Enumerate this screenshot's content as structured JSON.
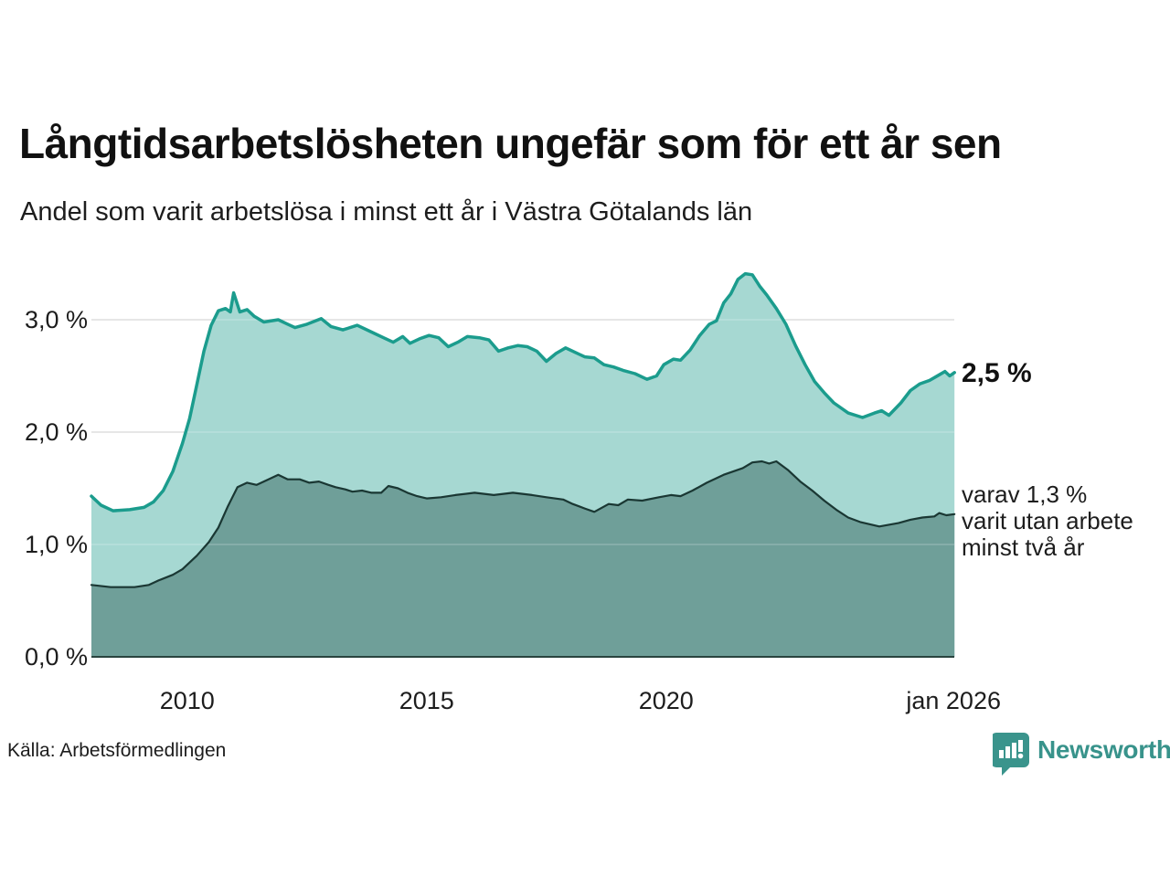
{
  "header": {
    "title": "Långtidsarbetslösheten ungefär som för ett år sen",
    "subtitle": "Andel som varit arbetslösa i minst ett år i Västra Götalands län"
  },
  "annotations": {
    "latest_value": "2,5 %",
    "secondary_line1": "varav 1,3 %",
    "secondary_line2": "varit utan arbete",
    "secondary_line3": "minst två år"
  },
  "footer": {
    "source": "Källa: Arbetsförmedlingen",
    "brand": "Newsworthy"
  },
  "colors": {
    "series1_line": "#1b9c8d",
    "series1_fill": "#a6d8d2",
    "series2_line": "#1a3733",
    "series2_fill": "#6f9f99",
    "gridline": "#d8d8d8",
    "baseline": "#29443f",
    "brand_teal": "#3a948c"
  },
  "chart_data": {
    "type": "area",
    "title": "Långtidsarbetslösheten ungefär som för ett år sen",
    "subtitle": "Andel som varit arbetslösa i minst ett år i Västra Götalands län",
    "xlabel": "",
    "ylabel": "",
    "grid": true,
    "x_axis": {
      "range": [
        2008,
        2026.1
      ],
      "ticks": [
        {
          "label": "2010",
          "year": 2010
        },
        {
          "label": "2015",
          "year": 2015
        },
        {
          "label": "2020",
          "year": 2020
        },
        {
          "label": "jan 2026",
          "year": 2026
        }
      ]
    },
    "y_axis": {
      "unit": "%",
      "range": [
        0,
        3.6
      ],
      "ticks": [
        {
          "label": "3,0 %",
          "value": 3.0
        },
        {
          "label": "2,0 %",
          "value": 2.0
        },
        {
          "label": "1,0 %",
          "value": 1.0
        },
        {
          "label": "0,0 %",
          "value": 0.0
        }
      ]
    },
    "series": [
      {
        "name": "Andel arbetslösa minst ett år",
        "latest_label": "2,5 %",
        "line_color": "#1b9c8d",
        "fill_color": "#a6d8d2",
        "line_width": 3.5,
        "points": [
          [
            2008.0,
            1.43
          ],
          [
            2008.2,
            1.35
          ],
          [
            2008.45,
            1.3
          ],
          [
            2008.8,
            1.31
          ],
          [
            2009.1,
            1.33
          ],
          [
            2009.3,
            1.38
          ],
          [
            2009.5,
            1.48
          ],
          [
            2009.7,
            1.65
          ],
          [
            2009.9,
            1.9
          ],
          [
            2010.05,
            2.12
          ],
          [
            2010.2,
            2.42
          ],
          [
            2010.35,
            2.72
          ],
          [
            2010.5,
            2.95
          ],
          [
            2010.65,
            3.08
          ],
          [
            2010.8,
            3.1
          ],
          [
            2010.9,
            3.07
          ],
          [
            2010.97,
            3.24
          ],
          [
            2011.1,
            3.07
          ],
          [
            2011.25,
            3.09
          ],
          [
            2011.4,
            3.03
          ],
          [
            2011.6,
            2.98
          ],
          [
            2011.9,
            3.0
          ],
          [
            2012.1,
            2.96
          ],
          [
            2012.25,
            2.93
          ],
          [
            2012.5,
            2.96
          ],
          [
            2012.8,
            3.01
          ],
          [
            2013.0,
            2.94
          ],
          [
            2013.25,
            2.91
          ],
          [
            2013.55,
            2.95
          ],
          [
            2013.85,
            2.89
          ],
          [
            2014.1,
            2.84
          ],
          [
            2014.3,
            2.8
          ],
          [
            2014.5,
            2.85
          ],
          [
            2014.65,
            2.79
          ],
          [
            2014.85,
            2.83
          ],
          [
            2015.05,
            2.86
          ],
          [
            2015.25,
            2.84
          ],
          [
            2015.45,
            2.76
          ],
          [
            2015.65,
            2.8
          ],
          [
            2015.85,
            2.85
          ],
          [
            2016.1,
            2.84
          ],
          [
            2016.3,
            2.82
          ],
          [
            2016.5,
            2.72
          ],
          [
            2016.7,
            2.75
          ],
          [
            2016.9,
            2.77
          ],
          [
            2017.1,
            2.76
          ],
          [
            2017.3,
            2.72
          ],
          [
            2017.5,
            2.63
          ],
          [
            2017.7,
            2.7
          ],
          [
            2017.9,
            2.75
          ],
          [
            2018.1,
            2.71
          ],
          [
            2018.3,
            2.67
          ],
          [
            2018.5,
            2.66
          ],
          [
            2018.7,
            2.6
          ],
          [
            2018.9,
            2.58
          ],
          [
            2019.1,
            2.55
          ],
          [
            2019.35,
            2.52
          ],
          [
            2019.6,
            2.47
          ],
          [
            2019.8,
            2.5
          ],
          [
            2019.95,
            2.6
          ],
          [
            2020.15,
            2.65
          ],
          [
            2020.3,
            2.64
          ],
          [
            2020.5,
            2.73
          ],
          [
            2020.7,
            2.86
          ],
          [
            2020.9,
            2.96
          ],
          [
            2021.05,
            2.99
          ],
          [
            2021.2,
            3.15
          ],
          [
            2021.35,
            3.23
          ],
          [
            2021.5,
            3.36
          ],
          [
            2021.65,
            3.41
          ],
          [
            2021.8,
            3.4
          ],
          [
            2021.95,
            3.3
          ],
          [
            2022.1,
            3.22
          ],
          [
            2022.3,
            3.1
          ],
          [
            2022.5,
            2.96
          ],
          [
            2022.7,
            2.77
          ],
          [
            2022.9,
            2.6
          ],
          [
            2023.1,
            2.45
          ],
          [
            2023.3,
            2.35
          ],
          [
            2023.5,
            2.26
          ],
          [
            2023.8,
            2.17
          ],
          [
            2024.1,
            2.13
          ],
          [
            2024.35,
            2.17
          ],
          [
            2024.5,
            2.19
          ],
          [
            2024.65,
            2.15
          ],
          [
            2024.9,
            2.26
          ],
          [
            2025.1,
            2.37
          ],
          [
            2025.3,
            2.43
          ],
          [
            2025.5,
            2.46
          ],
          [
            2025.7,
            2.51
          ],
          [
            2025.82,
            2.54
          ],
          [
            2025.92,
            2.5
          ],
          [
            2026.02,
            2.53
          ]
        ]
      },
      {
        "name": "varav utan arbete minst två år",
        "latest_label": "1,3 %",
        "line_color": "#1a3733",
        "fill_color": "#6f9f99",
        "line_width": 2.2,
        "points": [
          [
            2008.0,
            0.64
          ],
          [
            2008.4,
            0.62
          ],
          [
            2008.9,
            0.62
          ],
          [
            2009.2,
            0.64
          ],
          [
            2009.4,
            0.68
          ],
          [
            2009.7,
            0.73
          ],
          [
            2009.9,
            0.78
          ],
          [
            2010.2,
            0.9
          ],
          [
            2010.45,
            1.02
          ],
          [
            2010.65,
            1.15
          ],
          [
            2010.85,
            1.34
          ],
          [
            2011.05,
            1.51
          ],
          [
            2011.25,
            1.55
          ],
          [
            2011.45,
            1.53
          ],
          [
            2011.65,
            1.57
          ],
          [
            2011.9,
            1.62
          ],
          [
            2012.1,
            1.58
          ],
          [
            2012.35,
            1.58
          ],
          [
            2012.55,
            1.55
          ],
          [
            2012.75,
            1.56
          ],
          [
            2012.95,
            1.53
          ],
          [
            2013.1,
            1.51
          ],
          [
            2013.3,
            1.49
          ],
          [
            2013.45,
            1.47
          ],
          [
            2013.65,
            1.48
          ],
          [
            2013.85,
            1.46
          ],
          [
            2014.05,
            1.46
          ],
          [
            2014.2,
            1.52
          ],
          [
            2014.4,
            1.5
          ],
          [
            2014.6,
            1.46
          ],
          [
            2014.8,
            1.43
          ],
          [
            2015.0,
            1.41
          ],
          [
            2015.3,
            1.42
          ],
          [
            2015.6,
            1.44
          ],
          [
            2016.0,
            1.46
          ],
          [
            2016.4,
            1.44
          ],
          [
            2016.8,
            1.46
          ],
          [
            2017.2,
            1.44
          ],
          [
            2017.5,
            1.42
          ],
          [
            2017.85,
            1.4
          ],
          [
            2018.05,
            1.36
          ],
          [
            2018.3,
            1.32
          ],
          [
            2018.5,
            1.29
          ],
          [
            2018.8,
            1.36
          ],
          [
            2019.0,
            1.35
          ],
          [
            2019.2,
            1.4
          ],
          [
            2019.5,
            1.39
          ],
          [
            2019.85,
            1.42
          ],
          [
            2020.1,
            1.44
          ],
          [
            2020.3,
            1.43
          ],
          [
            2020.55,
            1.48
          ],
          [
            2020.85,
            1.55
          ],
          [
            2021.2,
            1.62
          ],
          [
            2021.6,
            1.68
          ],
          [
            2021.8,
            1.73
          ],
          [
            2022.0,
            1.74
          ],
          [
            2022.15,
            1.72
          ],
          [
            2022.3,
            1.74
          ],
          [
            2022.55,
            1.66
          ],
          [
            2022.8,
            1.56
          ],
          [
            2023.05,
            1.48
          ],
          [
            2023.3,
            1.39
          ],
          [
            2023.55,
            1.31
          ],
          [
            2023.8,
            1.24
          ],
          [
            2024.05,
            1.2
          ],
          [
            2024.45,
            1.16
          ],
          [
            2024.85,
            1.19
          ],
          [
            2025.1,
            1.22
          ],
          [
            2025.35,
            1.24
          ],
          [
            2025.6,
            1.25
          ],
          [
            2025.7,
            1.28
          ],
          [
            2025.85,
            1.26
          ],
          [
            2026.02,
            1.27
          ]
        ]
      }
    ]
  }
}
